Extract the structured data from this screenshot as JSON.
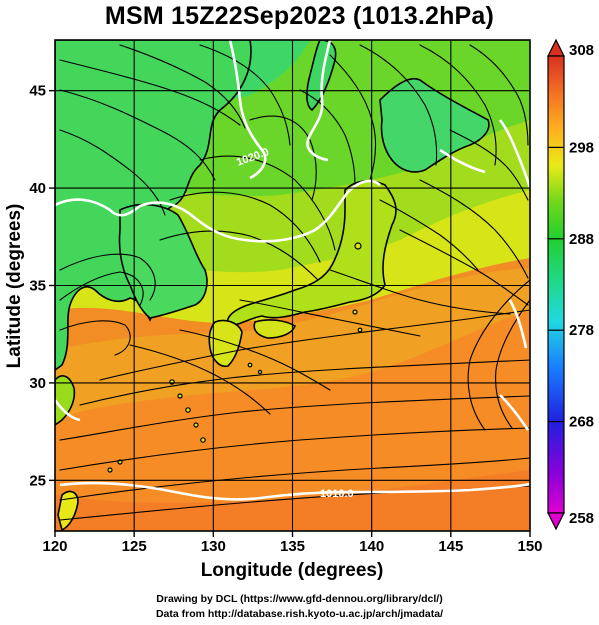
{
  "title": "MSM 15Z22Sep2023 (1013.2hPa)",
  "map": {
    "xlabel": "Longitude (degrees)",
    "ylabel": "Latitude  (degrees)",
    "lon_range": [
      120,
      150
    ],
    "lat_range": [
      22.4,
      47.6
    ],
    "x_ticks": [
      120,
      125,
      130,
      135,
      140,
      145,
      150
    ],
    "y_ticks": [
      25,
      30,
      35,
      40,
      45
    ],
    "field": "temperature shaded, wind streamlines, sea level pressure contours (white)",
    "contour_labels": [
      {
        "text": "1020.0",
        "lon": 130.5,
        "lat": 41.2
      },
      {
        "text": "1010.0",
        "lon": 139.5,
        "lat": 24.6
      }
    ]
  },
  "colorbar": {
    "min": 258,
    "max": 308,
    "ticks": [
      258,
      268,
      278,
      288,
      298,
      308
    ],
    "colors": [
      "#e000d0",
      "#6000d8",
      "#1838d8",
      "#1aa0ff",
      "#25e0c0",
      "#19d47a",
      "#3ad21c",
      "#a8e010",
      "#f2e81a",
      "#ffb020",
      "#f78a25",
      "#e85020",
      "#d93a20"
    ]
  },
  "credits": {
    "line1": "Drawing by DCL (https://www.gfd-dennou.org/library/dcl/)",
    "line2": "Data from http://database.rish.kyoto-u.ac.jp/arch/jmadata/"
  }
}
